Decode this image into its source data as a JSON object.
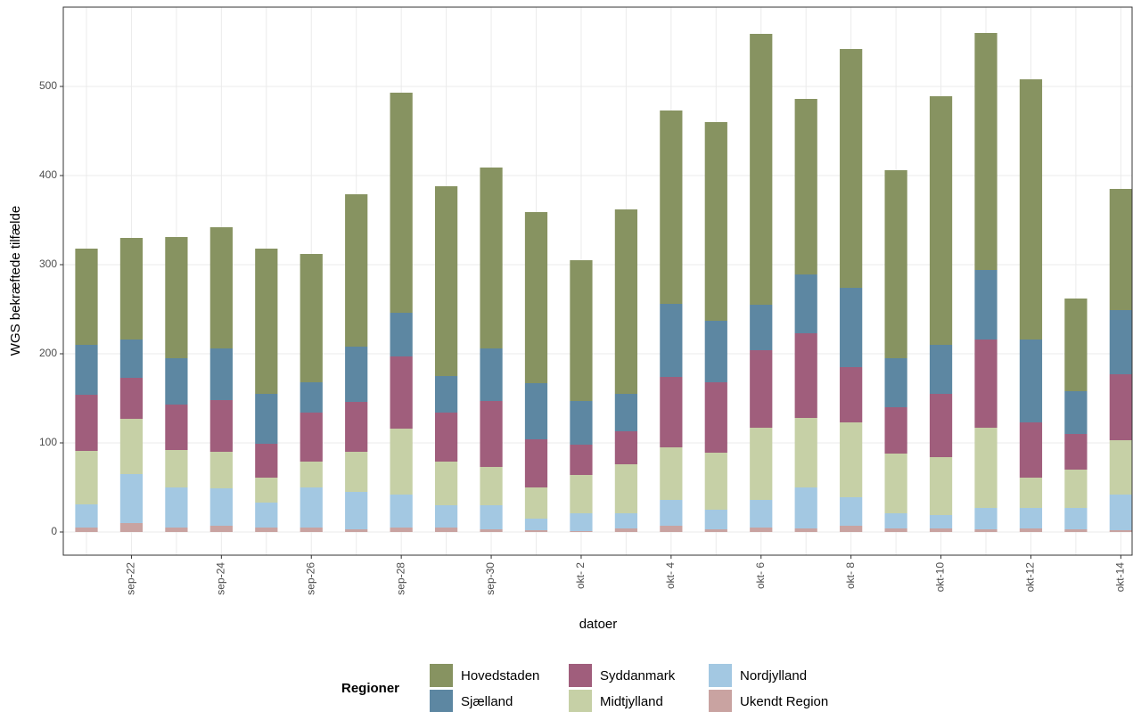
{
  "chart_data": {
    "type": "stacked_bar",
    "x_label": "datoer",
    "y_label": "WGS bekræftede tilfælde",
    "legend_title": "Regioner",
    "categories": [
      null,
      "sep-22",
      null,
      "sep-24",
      null,
      "sep-26",
      null,
      "sep-28",
      null,
      "sep-30",
      null,
      "okt- 2",
      null,
      "okt- 4",
      null,
      "okt- 6",
      null,
      "okt- 8",
      null,
      "okt-10",
      null,
      "okt-12",
      null,
      "okt-14"
    ],
    "series": [
      {
        "name": "Hovedstaden",
        "color": "#879361",
        "values": [
          108,
          114,
          136,
          136,
          163,
          144,
          171,
          247,
          213,
          203,
          192,
          158,
          207,
          217,
          223,
          304,
          197,
          268,
          211,
          279,
          266,
          292,
          104,
          136
        ]
      },
      {
        "name": "Sjælland",
        "color": "#5d87a2",
        "values": [
          56,
          43,
          52,
          58,
          56,
          34,
          62,
          49,
          41,
          59,
          63,
          49,
          42,
          82,
          69,
          51,
          66,
          89,
          55,
          55,
          78,
          93,
          48,
          72
        ]
      },
      {
        "name": "Syddanmark",
        "color": "#a05e7c",
        "values": [
          63,
          46,
          51,
          58,
          38,
          55,
          56,
          81,
          55,
          74,
          54,
          34,
          37,
          79,
          79,
          87,
          95,
          62,
          52,
          71,
          99,
          62,
          40,
          74
        ]
      },
      {
        "name": "Midtjylland",
        "color": "#c6d0a6",
        "values": [
          60,
          62,
          42,
          41,
          28,
          29,
          45,
          74,
          49,
          43,
          35,
          43,
          55,
          59,
          64,
          81,
          78,
          84,
          67,
          65,
          90,
          34,
          43,
          61
        ]
      },
      {
        "name": "Nordjylland",
        "color": "#a3c8e2",
        "values": [
          26,
          55,
          45,
          42,
          28,
          45,
          42,
          37,
          25,
          27,
          13,
          20,
          17,
          29,
          22,
          31,
          46,
          32,
          17,
          15,
          24,
          23,
          24,
          40
        ]
      },
      {
        "name": "Ukendt Region",
        "color": "#c9a3a1",
        "values": [
          5,
          10,
          5,
          7,
          5,
          5,
          3,
          5,
          5,
          3,
          2,
          1,
          4,
          7,
          3,
          5,
          4,
          7,
          4,
          4,
          3,
          4,
          3,
          2
        ]
      }
    ],
    "ylim": [
      -26,
      589
    ],
    "yticks": [
      0,
      100,
      200,
      300,
      400,
      500
    ],
    "grid": true,
    "legend_position": "bottom"
  }
}
